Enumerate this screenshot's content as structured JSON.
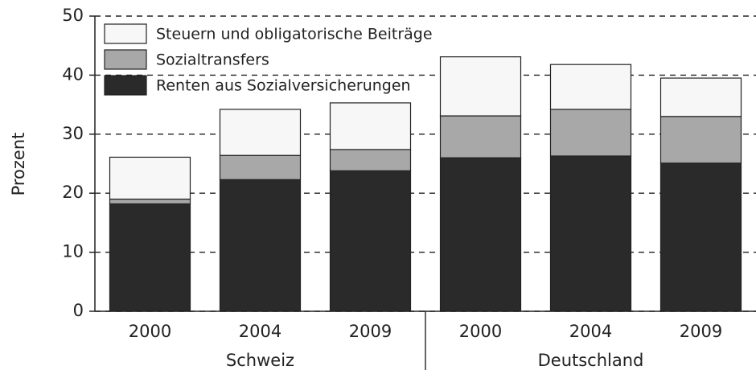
{
  "chart_data": {
    "type": "stacked_bar",
    "ylabel": "Prozent",
    "groups": [
      {
        "name": "Schweiz",
        "categories": [
          "2000",
          "2004",
          "2009"
        ]
      },
      {
        "name": "Deutschland",
        "categories": [
          "2000",
          "2004",
          "2009"
        ]
      }
    ],
    "series": [
      {
        "name": "Renten aus Sozialversicherungen",
        "color": "#2a2a2a",
        "values": [
          18.2,
          22.3,
          23.8,
          26.0,
          26.3,
          25.1
        ]
      },
      {
        "name": "Sozialtransfers",
        "color": "#a8a8a8",
        "values": [
          0.8,
          4.1,
          3.6,
          7.1,
          7.9,
          7.9
        ]
      },
      {
        "name": "Steuern und obligatorische Beiträge",
        "color": "#f7f7f7",
        "values": [
          7.1,
          7.8,
          7.9,
          10.0,
          7.6,
          6.5
        ]
      }
    ],
    "ylim": [
      0,
      50
    ],
    "yticks": [
      0,
      10,
      20,
      30,
      40,
      50
    ],
    "grid": true,
    "legend": "upper left"
  }
}
